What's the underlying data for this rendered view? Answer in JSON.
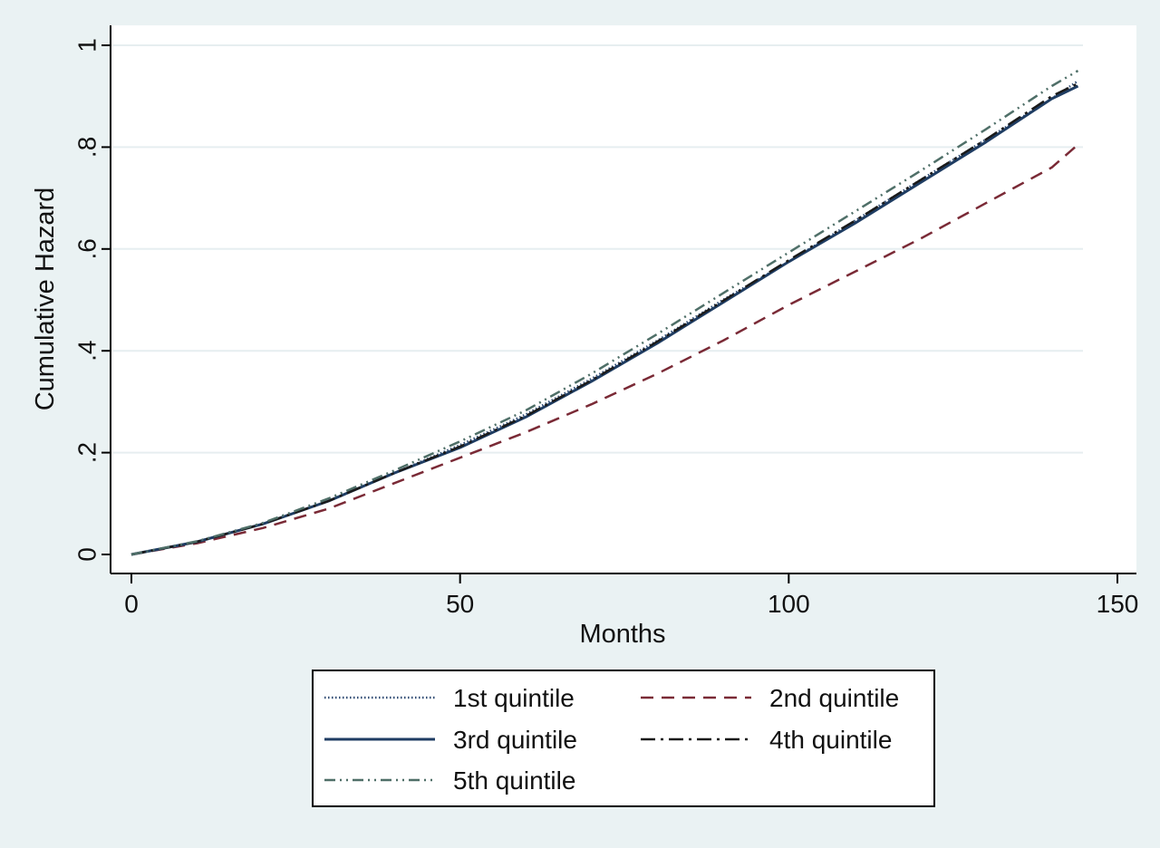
{
  "chart_data": {
    "type": "line",
    "title": "",
    "xlabel": "Months",
    "ylabel": "Cumulative Hazard",
    "xlim": [
      0,
      150
    ],
    "ylim": [
      0,
      1
    ],
    "x_ticks": [
      0,
      50,
      100,
      150
    ],
    "x_tick_labels": [
      "0",
      "50",
      "100",
      "150"
    ],
    "y_ticks": [
      0,
      0.2,
      0.4,
      0.6,
      0.8,
      1
    ],
    "y_tick_labels": [
      "0",
      ".2",
      ".4",
      ".6",
      ".8",
      "1"
    ],
    "grid": "horizontal",
    "legend_position": "bottom",
    "series": [
      {
        "name": "1st quintile",
        "color": "#2e4a72",
        "style": "dotted",
        "x": [
          0,
          10,
          20,
          30,
          40,
          50,
          60,
          70,
          80,
          90,
          100,
          110,
          120,
          130,
          140,
          144
        ],
        "y": [
          0,
          0.025,
          0.06,
          0.105,
          0.16,
          0.215,
          0.275,
          0.345,
          0.42,
          0.5,
          0.575,
          0.655,
          0.735,
          0.815,
          0.895,
          0.93
        ]
      },
      {
        "name": "2nd quintile",
        "color": "#7a2a36",
        "style": "dashed",
        "x": [
          0,
          10,
          20,
          30,
          40,
          50,
          60,
          70,
          80,
          90,
          100,
          110,
          120,
          130,
          140,
          144
        ],
        "y": [
          0,
          0.022,
          0.052,
          0.09,
          0.14,
          0.19,
          0.24,
          0.295,
          0.355,
          0.42,
          0.49,
          0.555,
          0.62,
          0.69,
          0.76,
          0.805
        ]
      },
      {
        "name": "3rd quintile",
        "color": "#1f3d63",
        "style": "solid",
        "x": [
          0,
          10,
          20,
          30,
          40,
          50,
          60,
          70,
          80,
          90,
          100,
          110,
          120,
          130,
          140,
          144
        ],
        "y": [
          0,
          0.025,
          0.06,
          0.105,
          0.16,
          0.21,
          0.27,
          0.34,
          0.415,
          0.495,
          0.575,
          0.65,
          0.73,
          0.81,
          0.895,
          0.92
        ]
      },
      {
        "name": "4th quintile",
        "color": "#1a1a1a",
        "style": "dashdot",
        "x": [
          0,
          10,
          20,
          30,
          40,
          50,
          60,
          70,
          80,
          90,
          100,
          110,
          120,
          130,
          140,
          144
        ],
        "y": [
          0,
          0.025,
          0.06,
          0.105,
          0.16,
          0.212,
          0.272,
          0.342,
          0.418,
          0.498,
          0.578,
          0.655,
          0.735,
          0.815,
          0.9,
          0.925
        ]
      },
      {
        "name": "5th quintile",
        "color": "#4f6f68",
        "style": "dashdotdot",
        "x": [
          0,
          10,
          20,
          30,
          40,
          50,
          60,
          70,
          80,
          90,
          100,
          110,
          120,
          130,
          140,
          144
        ],
        "y": [
          0,
          0.026,
          0.062,
          0.11,
          0.165,
          0.222,
          0.283,
          0.355,
          0.433,
          0.513,
          0.593,
          0.673,
          0.753,
          0.835,
          0.92,
          0.95
        ]
      }
    ]
  },
  "legend": {
    "items": [
      "1st quintile",
      "2nd quintile",
      "3rd quintile",
      "4th quintile",
      "5th quintile"
    ]
  },
  "colors": {
    "outer_background": "#eaf2f3",
    "plot_background": "#ffffff",
    "axis": "#000000",
    "gridline": "#e6eef0"
  }
}
